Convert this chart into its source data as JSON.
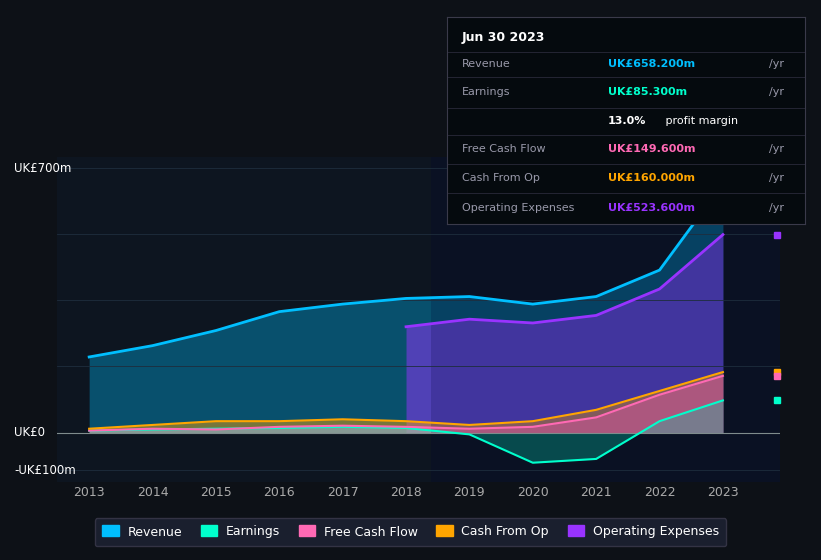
{
  "background_color": "#0d1117",
  "plot_bg_color": "#0d1520",
  "grid_color": "#1e2d3d",
  "years": [
    2013,
    2014,
    2015,
    2016,
    2017,
    2018,
    2019,
    2020,
    2021,
    2022,
    2023
  ],
  "revenue": [
    200,
    230,
    270,
    320,
    340,
    355,
    360,
    340,
    360,
    430,
    658
  ],
  "earnings": [
    5,
    8,
    10,
    12,
    15,
    12,
    -5,
    -80,
    -70,
    30,
    85
  ],
  "free_cash_flow": [
    5,
    10,
    8,
    15,
    18,
    15,
    10,
    15,
    40,
    100,
    150
  ],
  "cash_from_op": [
    10,
    20,
    30,
    30,
    35,
    30,
    20,
    30,
    60,
    110,
    160
  ],
  "operating_expenses": [
    0,
    0,
    0,
    0,
    0,
    280,
    300,
    290,
    310,
    380,
    524
  ],
  "ylim": [
    -130,
    730
  ],
  "yticks": [
    -100,
    0,
    700
  ],
  "ytick_labels": [
    "-UK£100m",
    "UK£0",
    "UK£700m"
  ],
  "revenue_color": "#00bfff",
  "earnings_color": "#00ffcc",
  "fcf_color": "#ff69b4",
  "cashop_color": "#ffa500",
  "opex_color": "#9933ff",
  "legend_labels": [
    "Revenue",
    "Earnings",
    "Free Cash Flow",
    "Cash From Op",
    "Operating Expenses"
  ],
  "tooltip_title": "Jun 30 2023",
  "tooltip_revenue": "UK£658.200m /yr",
  "tooltip_earnings": "UK£85.300m /yr",
  "tooltip_margin": "13.0% profit margin",
  "tooltip_fcf": "UK£149.600m /yr",
  "tooltip_cashop": "UK£160.000m /yr",
  "tooltip_opex": "UK£523.600m /yr"
}
